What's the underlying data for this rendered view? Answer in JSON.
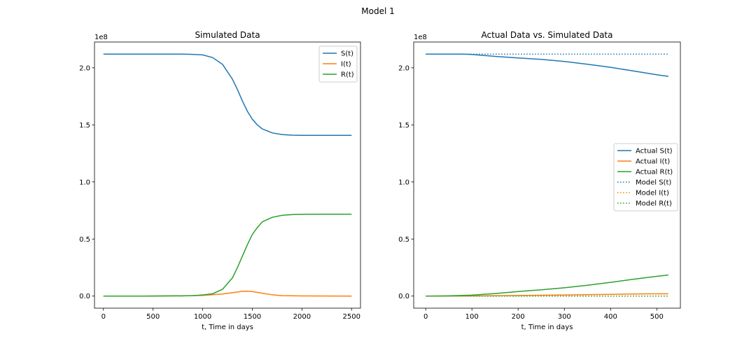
{
  "figure": {
    "title": "Model 1"
  },
  "chart_data": [
    {
      "type": "line",
      "title": "Simulated Data",
      "xlabel": "t, Time in days",
      "ylabel": "",
      "y_offset_label": "1e8",
      "xlim": [
        -90,
        2590
      ],
      "ylim": [
        -0.106,
        2.226
      ],
      "y_scale_factor": 100000000,
      "xticks": [
        0,
        500,
        1000,
        1500,
        2000,
        2500
      ],
      "xtick_labels": [
        "0",
        "500",
        "1000",
        "1500",
        "2000",
        "2500"
      ],
      "yticks": [
        0.0,
        0.5,
        1.0,
        1.5,
        2.0
      ],
      "ytick_labels": [
        "0.0",
        "0.5",
        "1.0",
        "1.5",
        "2.0"
      ],
      "grid": false,
      "legend_position": "top-right",
      "series": [
        {
          "name": "S(t)",
          "color": "#1f77b4",
          "style": "solid",
          "x": [
            0,
            200,
            400,
            600,
            800,
            900,
            1000,
            1100,
            1200,
            1300,
            1350,
            1400,
            1450,
            1500,
            1550,
            1600,
            1700,
            1800,
            1900,
            2000,
            2200,
            2500
          ],
          "y": [
            2.12,
            2.12,
            2.12,
            2.12,
            2.12,
            2.118,
            2.113,
            2.09,
            2.03,
            1.9,
            1.81,
            1.71,
            1.62,
            1.55,
            1.5,
            1.465,
            1.43,
            1.415,
            1.41,
            1.408,
            1.408,
            1.408
          ]
        },
        {
          "name": "I(t)",
          "color": "#ff7f0e",
          "style": "solid",
          "x": [
            0,
            400,
            800,
            1000,
            1100,
            1200,
            1300,
            1400,
            1450,
            1500,
            1600,
            1700,
            1800,
            2000,
            2500
          ],
          "y": [
            0.0,
            0.0,
            0.002,
            0.006,
            0.012,
            0.018,
            0.03,
            0.042,
            0.043,
            0.04,
            0.025,
            0.011,
            0.004,
            0.001,
            0.0
          ]
        },
        {
          "name": "R(t)",
          "color": "#2ca02c",
          "style": "solid",
          "x": [
            0,
            400,
            800,
            900,
            1000,
            1100,
            1200,
            1300,
            1350,
            1400,
            1450,
            1500,
            1550,
            1600,
            1700,
            1800,
            1900,
            2000,
            2200,
            2500
          ],
          "y": [
            0.0,
            0.0,
            0.002,
            0.004,
            0.01,
            0.02,
            0.06,
            0.16,
            0.25,
            0.35,
            0.45,
            0.54,
            0.6,
            0.65,
            0.69,
            0.708,
            0.714,
            0.716,
            0.717,
            0.717
          ]
        }
      ]
    },
    {
      "type": "line",
      "title": "Actual Data vs. Simulated Data",
      "xlabel": "t, Time in days",
      "ylabel": "",
      "y_offset_label": "1e8",
      "xlim": [
        -26,
        551
      ],
      "ylim": [
        -0.106,
        2.226
      ],
      "y_scale_factor": 100000000,
      "xticks": [
        0,
        100,
        200,
        300,
        400,
        500
      ],
      "xtick_labels": [
        "0",
        "100",
        "200",
        "300",
        "400",
        "500"
      ],
      "yticks": [
        0.0,
        0.5,
        1.0,
        1.5,
        2.0
      ],
      "ytick_labels": [
        "0.0",
        "0.5",
        "1.0",
        "1.5",
        "2.0"
      ],
      "grid": false,
      "legend_position": "center-right",
      "series": [
        {
          "name": "Actual S(t)",
          "color": "#1f77b4",
          "style": "solid",
          "x": [
            0,
            50,
            80,
            100,
            150,
            200,
            250,
            300,
            350,
            400,
            450,
            500,
            525
          ],
          "y": [
            2.12,
            2.12,
            2.12,
            2.117,
            2.1,
            2.086,
            2.074,
            2.056,
            2.031,
            2.004,
            1.972,
            1.939,
            1.925
          ]
        },
        {
          "name": "Actual I(t)",
          "color": "#ff7f0e",
          "style": "solid",
          "x": [
            0,
            100,
            150,
            200,
            300,
            400,
            480,
            525
          ],
          "y": [
            0.0,
            0.001,
            0.003,
            0.005,
            0.01,
            0.015,
            0.02,
            0.02
          ]
        },
        {
          "name": "Actual R(t)",
          "color": "#2ca02c",
          "style": "solid",
          "x": [
            0,
            50,
            100,
            150,
            200,
            240,
            250,
            300,
            350,
            400,
            450,
            500,
            525
          ],
          "y": [
            0.0,
            0.002,
            0.008,
            0.022,
            0.04,
            0.052,
            0.055,
            0.073,
            0.095,
            0.12,
            0.148,
            0.173,
            0.185
          ]
        },
        {
          "name": "Model S(t)",
          "color": "#1f77b4",
          "style": "dotted",
          "x": [
            0,
            100,
            200,
            300,
            400,
            525
          ],
          "y": [
            2.12,
            2.12,
            2.12,
            2.12,
            2.12,
            2.12
          ]
        },
        {
          "name": "Model I(t)",
          "color": "#ff7f0e",
          "style": "dotted",
          "x": [
            0,
            525
          ],
          "y": [
            0.0,
            0.0
          ]
        },
        {
          "name": "Model R(t)",
          "color": "#2ca02c",
          "style": "dotted",
          "x": [
            0,
            525
          ],
          "y": [
            0.0,
            0.0
          ]
        }
      ]
    }
  ]
}
